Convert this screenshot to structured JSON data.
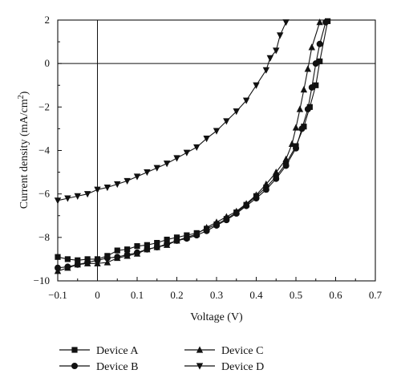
{
  "chart_data": {
    "type": "line",
    "xlabel": "Voltage (V)",
    "ylabel_main": "Current density (mA/cm",
    "ylabel_sup": "2",
    "ylabel_close": ")",
    "xlim": [
      -0.1,
      0.7
    ],
    "ylim": [
      -10,
      2
    ],
    "x_ticks": [
      -0.1,
      0,
      0.1,
      0.2,
      0.3,
      0.4,
      0.5,
      0.6,
      0.7
    ],
    "x_tick_labels": [
      "−0.1",
      "0",
      "0.1",
      "0.2",
      "0.3",
      "0.4",
      "0.5",
      "0.6",
      "0.7"
    ],
    "y_ticks": [
      2,
      0,
      -2,
      -4,
      -6,
      -8,
      -10
    ],
    "y_tick_labels": [
      "2",
      "0",
      "−2",
      "−4",
      "−6",
      "−8",
      "−10"
    ],
    "grid": false,
    "reference_lines": {
      "x": 0,
      "y": 0
    },
    "legend_position": "bottom",
    "series": [
      {
        "name": "Device A",
        "marker": "square",
        "points": [
          [
            -0.1,
            -8.9
          ],
          [
            -0.075,
            -9.0
          ],
          [
            -0.05,
            -9.05
          ],
          [
            -0.025,
            -9.0
          ],
          [
            0.0,
            -9.0
          ],
          [
            0.025,
            -8.85
          ],
          [
            0.05,
            -8.6
          ],
          [
            0.075,
            -8.55
          ],
          [
            0.1,
            -8.4
          ],
          [
            0.125,
            -8.35
          ],
          [
            0.15,
            -8.25
          ],
          [
            0.175,
            -8.1
          ],
          [
            0.2,
            -8.0
          ],
          [
            0.225,
            -7.9
          ],
          [
            0.25,
            -7.8
          ],
          [
            0.275,
            -7.6
          ],
          [
            0.3,
            -7.4
          ],
          [
            0.325,
            -7.15
          ],
          [
            0.35,
            -6.85
          ],
          [
            0.375,
            -6.5
          ],
          [
            0.4,
            -6.1
          ],
          [
            0.425,
            -5.7
          ],
          [
            0.45,
            -5.2
          ],
          [
            0.475,
            -4.6
          ],
          [
            0.5,
            -3.8
          ],
          [
            0.52,
            -2.9
          ],
          [
            0.535,
            -2.0
          ],
          [
            0.55,
            -1.0
          ],
          [
            0.56,
            0.1
          ],
          [
            0.58,
            1.95
          ]
        ]
      },
      {
        "name": "Device B",
        "marker": "circle",
        "points": [
          [
            -0.1,
            -9.4
          ],
          [
            -0.075,
            -9.35
          ],
          [
            -0.05,
            -9.25
          ],
          [
            -0.025,
            -9.15
          ],
          [
            0.0,
            -9.05
          ],
          [
            0.025,
            -8.95
          ],
          [
            0.05,
            -8.9
          ],
          [
            0.075,
            -8.8
          ],
          [
            0.1,
            -8.7
          ],
          [
            0.125,
            -8.55
          ],
          [
            0.15,
            -8.45
          ],
          [
            0.175,
            -8.3
          ],
          [
            0.2,
            -8.15
          ],
          [
            0.225,
            -8.05
          ],
          [
            0.25,
            -7.9
          ],
          [
            0.275,
            -7.7
          ],
          [
            0.3,
            -7.45
          ],
          [
            0.325,
            -7.2
          ],
          [
            0.35,
            -6.9
          ],
          [
            0.375,
            -6.55
          ],
          [
            0.4,
            -6.2
          ],
          [
            0.425,
            -5.8
          ],
          [
            0.45,
            -5.3
          ],
          [
            0.475,
            -4.7
          ],
          [
            0.5,
            -3.9
          ],
          [
            0.515,
            -3.0
          ],
          [
            0.53,
            -2.1
          ],
          [
            0.54,
            -1.1
          ],
          [
            0.55,
            0.0
          ],
          [
            0.56,
            0.9
          ],
          [
            0.575,
            1.9
          ]
        ]
      },
      {
        "name": "Device C",
        "marker": "triangle-up",
        "points": [
          [
            -0.1,
            -9.55
          ],
          [
            -0.075,
            -9.4
          ],
          [
            -0.05,
            -9.25
          ],
          [
            -0.025,
            -9.2
          ],
          [
            0.0,
            -9.2
          ],
          [
            0.025,
            -9.15
          ],
          [
            0.05,
            -8.95
          ],
          [
            0.075,
            -8.85
          ],
          [
            0.1,
            -8.75
          ],
          [
            0.125,
            -8.55
          ],
          [
            0.15,
            -8.45
          ],
          [
            0.175,
            -8.35
          ],
          [
            0.2,
            -8.15
          ],
          [
            0.225,
            -8.0
          ],
          [
            0.25,
            -7.85
          ],
          [
            0.275,
            -7.55
          ],
          [
            0.3,
            -7.3
          ],
          [
            0.325,
            -7.05
          ],
          [
            0.35,
            -6.8
          ],
          [
            0.375,
            -6.45
          ],
          [
            0.4,
            -6.05
          ],
          [
            0.425,
            -5.55
          ],
          [
            0.45,
            -5.0
          ],
          [
            0.475,
            -4.4
          ],
          [
            0.49,
            -3.7
          ],
          [
            0.5,
            -2.95
          ],
          [
            0.51,
            -2.1
          ],
          [
            0.52,
            -1.2
          ],
          [
            0.53,
            -0.25
          ],
          [
            0.54,
            0.75
          ],
          [
            0.56,
            1.9
          ]
        ]
      },
      {
        "name": "Device D",
        "marker": "triangle-down",
        "points": [
          [
            -0.1,
            -6.3
          ],
          [
            -0.075,
            -6.2
          ],
          [
            -0.05,
            -6.1
          ],
          [
            -0.025,
            -6.0
          ],
          [
            0.0,
            -5.8
          ],
          [
            0.025,
            -5.7
          ],
          [
            0.05,
            -5.55
          ],
          [
            0.075,
            -5.4
          ],
          [
            0.1,
            -5.2
          ],
          [
            0.125,
            -5.0
          ],
          [
            0.15,
            -4.8
          ],
          [
            0.175,
            -4.6
          ],
          [
            0.2,
            -4.35
          ],
          [
            0.225,
            -4.1
          ],
          [
            0.25,
            -3.85
          ],
          [
            0.275,
            -3.45
          ],
          [
            0.3,
            -3.1
          ],
          [
            0.325,
            -2.65
          ],
          [
            0.35,
            -2.2
          ],
          [
            0.375,
            -1.7
          ],
          [
            0.4,
            -1.0
          ],
          [
            0.425,
            -0.3
          ],
          [
            0.435,
            0.25
          ],
          [
            0.45,
            0.6
          ],
          [
            0.46,
            1.3
          ],
          [
            0.475,
            1.9
          ]
        ]
      }
    ]
  },
  "colors": {
    "ink": "#111111",
    "background": "#ffffff"
  }
}
